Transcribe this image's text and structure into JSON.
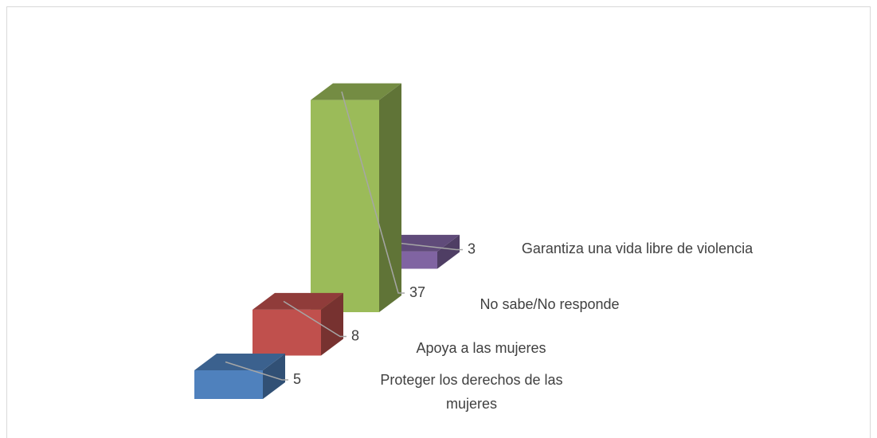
{
  "chart_data": {
    "type": "bar3d",
    "categories": [
      "Proteger los derechos de las mujeres",
      "Apoya a las mujeres",
      "No sabe/No responde",
      "Garantiza una vida libre de violencia"
    ],
    "values": [
      5,
      8,
      37,
      3
    ],
    "colors": [
      "#4f81bd",
      "#c0504d",
      "#9bbb59",
      "#8064a2"
    ]
  }
}
